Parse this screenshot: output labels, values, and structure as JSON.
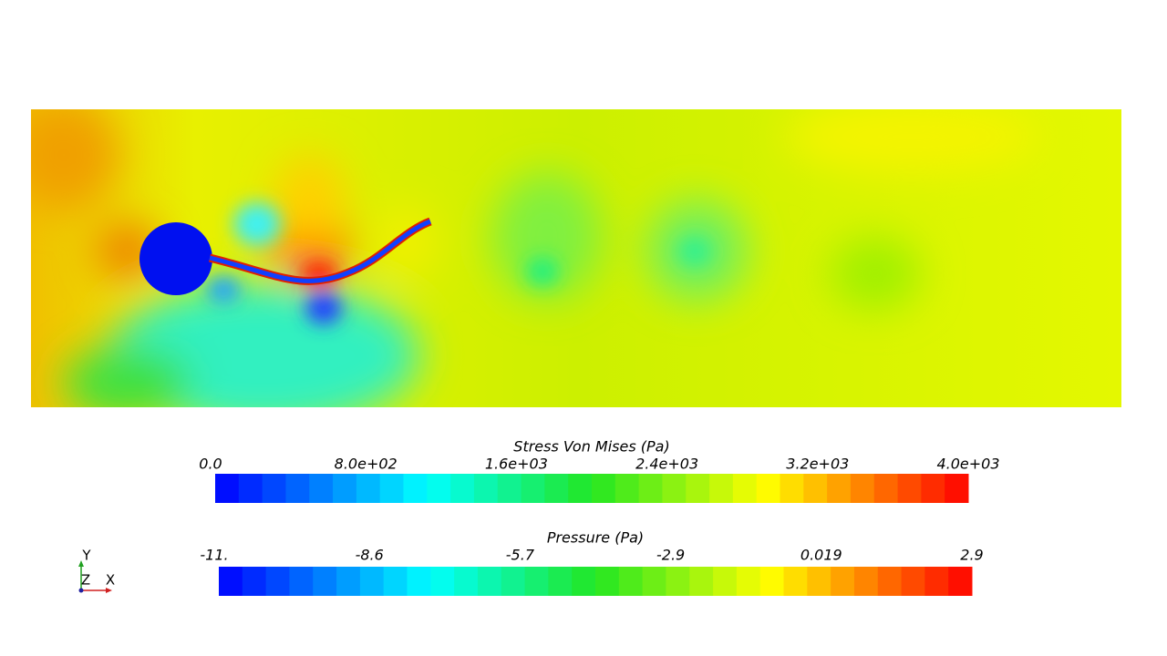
{
  "colorbars": [
    {
      "title": "Stress Von Mises (Pa)",
      "labels": [
        "0.0",
        "8.0e+02",
        "1.6e+03",
        "2.4e+03",
        "3.2e+03",
        "4.0e+03"
      ]
    },
    {
      "title": "Pressure (Pa)",
      "labels": [
        "-11.",
        "-8.6",
        "-5.7",
        "-2.9",
        "0.019",
        "2.9"
      ]
    }
  ],
  "axes": {
    "y": "Y",
    "z": "Z",
    "x": "X"
  }
}
